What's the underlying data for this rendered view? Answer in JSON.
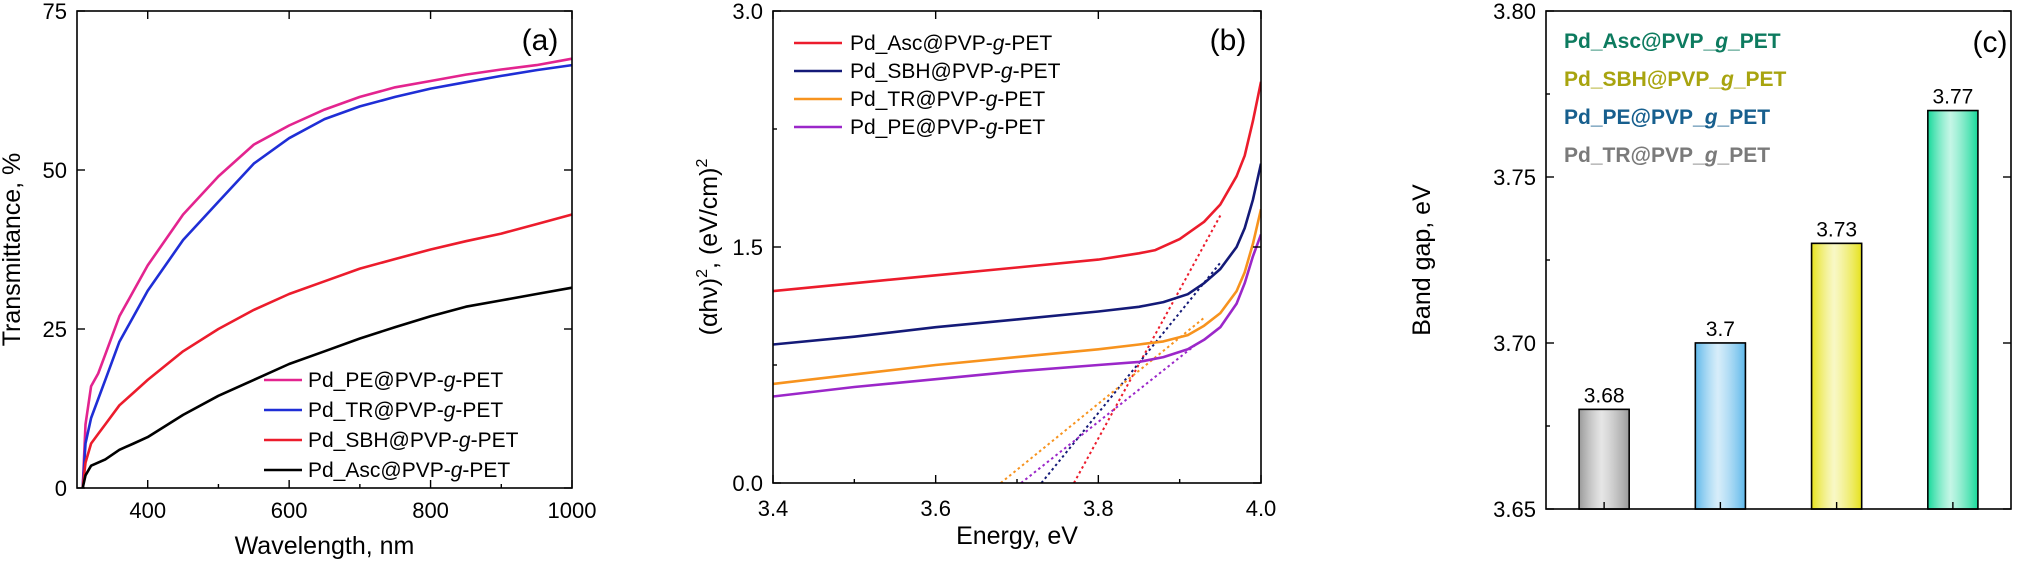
{
  "chart_data": [
    {
      "panel": "(a)",
      "type": "line",
      "xlabel": "Wavelength, nm",
      "ylabel": "Transmittance, %",
      "xlim": [
        300,
        1000
      ],
      "ylim": [
        0,
        75
      ],
      "xticks": [
        400,
        600,
        800,
        1000
      ],
      "yticks": [
        0,
        25,
        50,
        75
      ],
      "legend_position": "bottom-right",
      "grid": false,
      "series": [
        {
          "name": "Pd_PE@PVP-",
          "name_italic": "g",
          "name_suffix": "-PET",
          "color": "#e3248f",
          "x": [
            308,
            312,
            320,
            330,
            340,
            360,
            380,
            400,
            450,
            500,
            550,
            600,
            650,
            700,
            750,
            800,
            850,
            900,
            950,
            1000
          ],
          "y": [
            0,
            10,
            16,
            18,
            21,
            27,
            31,
            35,
            43,
            49,
            54,
            57,
            59.5,
            61.5,
            63,
            64,
            65,
            65.8,
            66.5,
            67.5
          ]
        },
        {
          "name": "Pd_TR@PVP-",
          "name_italic": "g",
          "name_suffix": "-PET",
          "color": "#1f2ed6",
          "x": [
            308,
            312,
            320,
            330,
            340,
            360,
            380,
            400,
            450,
            500,
            550,
            600,
            650,
            700,
            750,
            800,
            850,
            900,
            950,
            1000
          ],
          "y": [
            0,
            7,
            11,
            14,
            17,
            23,
            27,
            31,
            39,
            45,
            51,
            55,
            58,
            60,
            61.5,
            62.8,
            63.8,
            64.8,
            65.7,
            66.5
          ]
        },
        {
          "name": "Pd_SBH@PVP-",
          "name_italic": "g",
          "name_suffix": "-PET",
          "color": "#ec1c2c",
          "x": [
            308,
            312,
            320,
            330,
            340,
            360,
            380,
            400,
            450,
            500,
            550,
            600,
            650,
            700,
            750,
            800,
            850,
            900,
            950,
            1000
          ],
          "y": [
            0,
            4,
            7,
            8.5,
            10,
            13,
            15,
            17,
            21.5,
            25,
            28,
            30.5,
            32.5,
            34.5,
            36,
            37.5,
            38.8,
            40,
            41.5,
            43
          ]
        },
        {
          "name": "Pd_Asc@PVP-",
          "name_italic": "g",
          "name_suffix": "-PET",
          "color": "#000000",
          "x": [
            308,
            312,
            320,
            330,
            340,
            360,
            380,
            400,
            450,
            500,
            550,
            600,
            650,
            700,
            750,
            800,
            850,
            900,
            950,
            1000
          ],
          "y": [
            0,
            2,
            3.5,
            4,
            4.5,
            6,
            7,
            8,
            11.5,
            14.5,
            17,
            19.5,
            21.5,
            23.5,
            25.3,
            27,
            28.5,
            29.5,
            30.5,
            31.5
          ]
        }
      ]
    },
    {
      "panel": "(b)",
      "type": "line",
      "xlabel": "Energy, eV",
      "ylabel": "(αhν)², (eV/cm)²",
      "ylabel_parts": [
        "(αhν)",
        "2",
        ", (eV/cm)",
        "2"
      ],
      "xlim": [
        3.4,
        4.0
      ],
      "ylim": [
        0,
        3.0
      ],
      "xticks": [
        "3.4",
        "3.6",
        "3.8",
        "4.0"
      ],
      "yticks": [
        "0.0",
        "1.5",
        "3.0"
      ],
      "legend_position": "top-left",
      "grid": false,
      "series": [
        {
          "name": "Pd_Asc@PVP-",
          "name_italic": "g",
          "name_suffix": "-PET",
          "color": "#ec1c2c",
          "x": [
            3.4,
            3.5,
            3.6,
            3.7,
            3.8,
            3.85,
            3.87,
            3.9,
            3.93,
            3.95,
            3.97,
            3.98,
            3.99,
            4.0
          ],
          "y": [
            1.22,
            1.27,
            1.32,
            1.37,
            1.42,
            1.46,
            1.48,
            1.55,
            1.66,
            1.77,
            1.95,
            2.08,
            2.3,
            2.55
          ],
          "tangent": {
            "x": [
              3.77,
              3.95
            ],
            "y": [
              0.0,
              1.7
            ]
          }
        },
        {
          "name": "Pd_SBH@PVP-",
          "name_italic": "g",
          "name_suffix": "-PET",
          "color": "#141a78",
          "x": [
            3.4,
            3.5,
            3.6,
            3.7,
            3.8,
            3.85,
            3.88,
            3.91,
            3.93,
            3.95,
            3.97,
            3.98,
            3.99,
            4.0
          ],
          "y": [
            0.88,
            0.93,
            0.99,
            1.04,
            1.09,
            1.12,
            1.15,
            1.2,
            1.27,
            1.36,
            1.5,
            1.62,
            1.8,
            2.03
          ],
          "tangent": {
            "x": [
              3.73,
              3.95
            ],
            "y": [
              0.0,
              1.4
            ]
          }
        },
        {
          "name": "Pd_TR@PVP-",
          "name_italic": "g",
          "name_suffix": "-PET",
          "color": "#f7931e",
          "x": [
            3.4,
            3.5,
            3.6,
            3.7,
            3.8,
            3.85,
            3.88,
            3.91,
            3.93,
            3.95,
            3.97,
            3.98,
            3.99,
            4.0
          ],
          "y": [
            0.63,
            0.69,
            0.75,
            0.8,
            0.85,
            0.88,
            0.9,
            0.94,
            1.0,
            1.08,
            1.22,
            1.34,
            1.52,
            1.74
          ],
          "tangent": {
            "x": [
              3.68,
              3.93
            ],
            "y": [
              0.0,
              1.05
            ]
          }
        },
        {
          "name": "Pd_PE@PVP-",
          "name_italic": "g",
          "name_suffix": "-PET",
          "color": "#9b27c9",
          "x": [
            3.4,
            3.5,
            3.6,
            3.7,
            3.8,
            3.85,
            3.88,
            3.91,
            3.93,
            3.95,
            3.97,
            3.98,
            3.99,
            4.0
          ],
          "y": [
            0.55,
            0.61,
            0.66,
            0.71,
            0.75,
            0.77,
            0.8,
            0.85,
            0.91,
            0.99,
            1.14,
            1.27,
            1.44,
            1.58
          ],
          "tangent": {
            "x": [
              3.705,
              3.92
            ],
            "y": [
              0.0,
              0.88
            ]
          }
        }
      ]
    },
    {
      "panel": "(c)",
      "type": "bar",
      "xlabel": "",
      "ylabel": "Band gap, eV",
      "ylim": [
        3.65,
        3.8
      ],
      "yticks": [
        "3.65",
        "3.70",
        "3.75",
        "3.80"
      ],
      "grid": false,
      "legend_position": "top-left",
      "categories": [
        "Pd_TR@PVP_g_PET",
        "Pd_PE@PVP_g_PET",
        "Pd_SBH@PVP_g_PET",
        "Pd_Asc@PVP_g_PET"
      ],
      "values": [
        3.68,
        3.7,
        3.73,
        3.77
      ],
      "value_labels": [
        "3.68",
        "3.7",
        "3.73",
        "3.77"
      ],
      "colors": [
        "#9a9a9a",
        "#5eb8ea",
        "#e6e21c",
        "#16d99a"
      ],
      "legend": [
        {
          "parts": [
            "Pd_Asc@PVP_",
            "g",
            "_PET"
          ],
          "color": "#0d7b5f"
        },
        {
          "parts": [
            "Pd_SBH@PVP_",
            "g",
            "_PET"
          ],
          "color": "#a8a40f"
        },
        {
          "parts": [
            "Pd_PE@PVP_",
            "g",
            "_PET"
          ],
          "color": "#175f8e"
        },
        {
          "parts": [
            "Pd_TR@PVP_",
            "g",
            "_PET"
          ],
          "color": "#7a7a7a"
        }
      ]
    }
  ]
}
